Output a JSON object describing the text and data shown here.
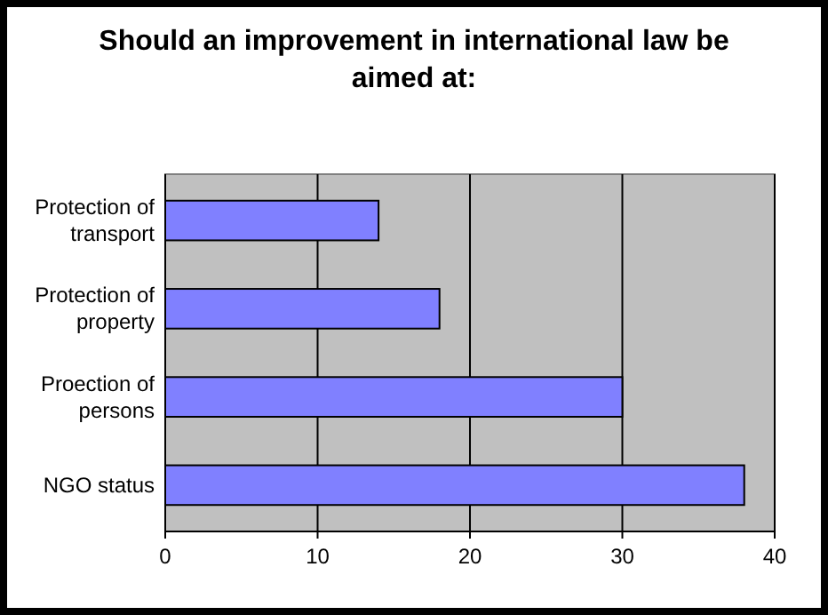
{
  "chart_data": {
    "type": "bar",
    "orientation": "horizontal",
    "title": "Should an improvement in international law be aimed at:",
    "categories": [
      "Protection of transport",
      "Protection of property",
      "Proection of persons",
      "NGO status"
    ],
    "values": [
      14,
      18,
      30,
      38
    ],
    "color": "#8080ff",
    "xlim": [
      0,
      40
    ],
    "xticks": [
      0,
      10,
      20,
      30,
      40
    ],
    "grid": "x"
  }
}
